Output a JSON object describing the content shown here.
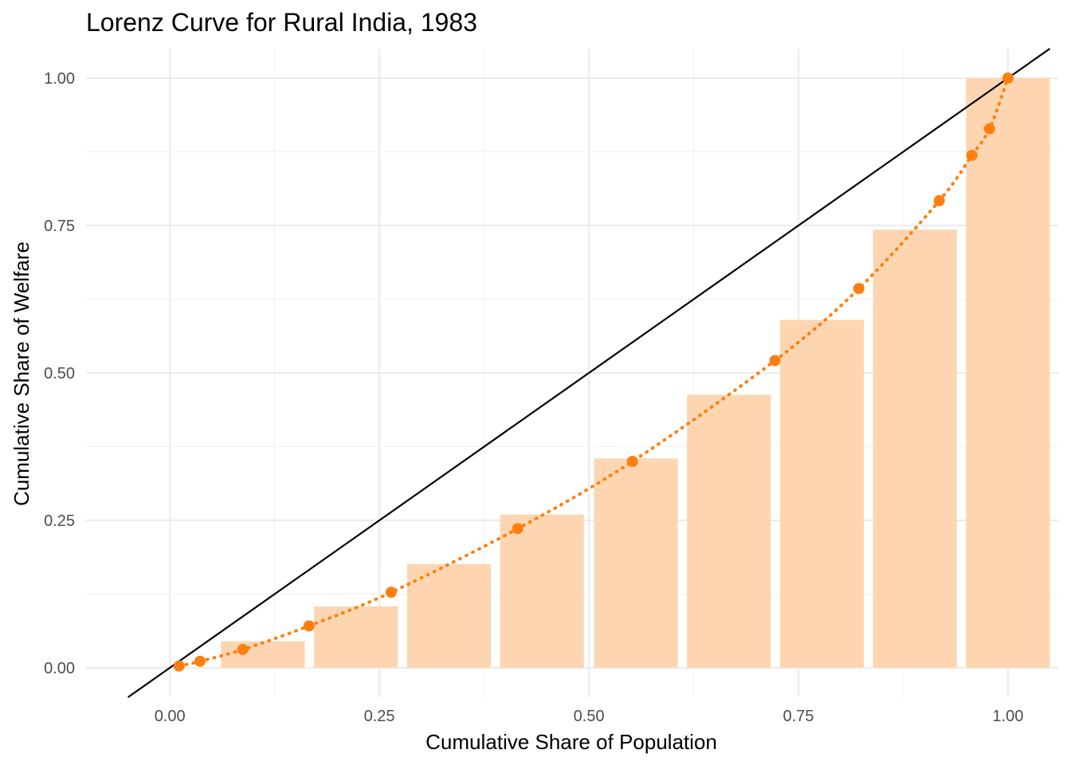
{
  "chart_data": {
    "type": "bar",
    "title": "Lorenz Curve for Rural India, 1983",
    "xlabel": "Cumulative Share of Population",
    "ylabel": "Cumulative Share of Welfare",
    "xlim": [
      -0.1,
      1.06
    ],
    "ylim": [
      -0.05,
      1.05
    ],
    "x_ticks": [
      {
        "value": 0,
        "label": "0.00"
      },
      {
        "value": 0.25,
        "label": "0.25"
      },
      {
        "value": 0.5,
        "label": "0.50"
      },
      {
        "value": 0.75,
        "label": "0.75"
      },
      {
        "value": 1,
        "label": "1.00"
      }
    ],
    "y_ticks": [
      {
        "value": 0,
        "label": "0.00"
      },
      {
        "value": 0.25,
        "label": "0.25"
      },
      {
        "value": 0.5,
        "label": "0.50"
      },
      {
        "value": 0.75,
        "label": "0.75"
      },
      {
        "value": 1,
        "label": "1.00"
      }
    ],
    "grid": true,
    "legend": "none",
    "bars": {
      "x": [
        0.111,
        0.222,
        0.333,
        0.444,
        0.556,
        0.667,
        0.778,
        0.889,
        1.0
      ],
      "values": [
        0.045,
        0.104,
        0.176,
        0.26,
        0.355,
        0.463,
        0.59,
        0.743,
        1.0
      ],
      "width": 0.1,
      "color": "#fdd6b1"
    },
    "lorenz_points": {
      "x": [
        0.011,
        0.036,
        0.087,
        0.166,
        0.264,
        0.415,
        0.552,
        0.722,
        0.822,
        0.918,
        0.957,
        0.978,
        1.0
      ],
      "y": [
        0.003,
        0.011,
        0.031,
        0.071,
        0.128,
        0.236,
        0.35,
        0.521,
        0.643,
        0.792,
        0.869,
        0.914,
        1.0
      ],
      "color": "#ff7f0e"
    },
    "equality_line": {
      "slope": 1,
      "intercept": 0,
      "color": "#000000"
    }
  }
}
